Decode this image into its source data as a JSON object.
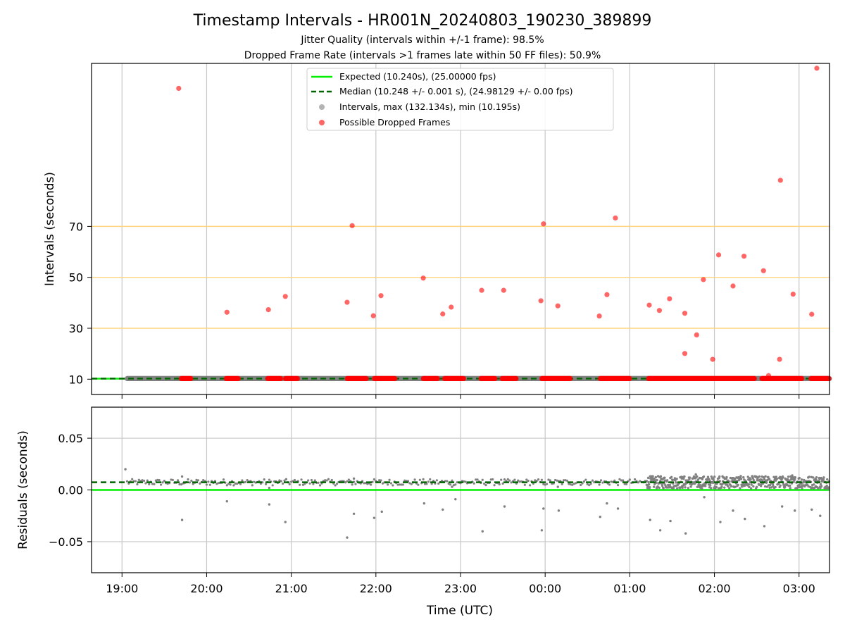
{
  "chart_data": {
    "type": "scatter",
    "title": "Timestamp Intervals - HR001N_20240803_190230_389899",
    "subtitle_lines": [
      "Jitter Quality (intervals within +/-1 frame): 98.5%",
      "Dropped Frame Rate (intervals >1 frames late within 50 FF files): 50.9%"
    ],
    "xlabel": "Time (UTC)",
    "x_tick_labels": [
      "19:00",
      "20:00",
      "21:00",
      "22:00",
      "23:00",
      "00:00",
      "01:00",
      "02:00",
      "03:00"
    ],
    "x_range_hours": [
      18.64,
      27.36
    ],
    "grid": true,
    "legend_position": "top-center",
    "colors": {
      "expected": "#00ee00",
      "median": "#006400",
      "intervals": "#808080",
      "dropped": "#ff0000",
      "threshold_lines": "#ffd580",
      "grid": "#c8c8c8"
    },
    "top_panel": {
      "ylabel": "Intervals (seconds)",
      "ylim": [
        4,
        134
      ],
      "y_ticks": [
        10,
        30,
        50,
        70
      ],
      "threshold_lines": [
        30,
        50,
        70
      ],
      "series": [
        {
          "name": "Expected (10.240s), (25.00000 fps)",
          "style": "line",
          "y": 10.24
        },
        {
          "name": "Median (10.248 +/- 0.001 s), (24.98129 +/- 0.00 fps)",
          "style": "dashed",
          "y": 10.248
        },
        {
          "name": "Intervals, max (132.134s), min (10.195s)",
          "style": "points",
          "x_extent": [
            19.06,
            27.36
          ],
          "y": 10.25
        },
        {
          "name": "Possible Dropped Frames",
          "style": "points",
          "clusters": [
            {
              "x_from": 19.7,
              "x_to": 19.82,
              "y": 10.25
            },
            {
              "x_from": 20.23,
              "x_to": 20.38,
              "y": 10.25
            },
            {
              "x_from": 20.72,
              "x_to": 20.88,
              "y": 10.25
            },
            {
              "x_from": 20.93,
              "x_to": 21.08,
              "y": 10.25
            },
            {
              "x_from": 21.66,
              "x_to": 21.89,
              "y": 10.25
            },
            {
              "x_from": 21.98,
              "x_to": 22.23,
              "y": 10.25
            },
            {
              "x_from": 22.56,
              "x_to": 22.73,
              "y": 10.25
            },
            {
              "x_from": 22.81,
              "x_to": 23.04,
              "y": 10.25
            },
            {
              "x_from": 23.24,
              "x_to": 23.41,
              "y": 10.25
            },
            {
              "x_from": 23.49,
              "x_to": 23.66,
              "y": 10.25
            },
            {
              "x_from": 23.96,
              "x_to": 24.3,
              "y": 10.25
            },
            {
              "x_from": 24.65,
              "x_to": 25.0,
              "y": 10.25
            },
            {
              "x_from": 25.22,
              "x_to": 26.48,
              "y": 10.25
            },
            {
              "x_from": 26.56,
              "x_to": 27.04,
              "y": 10.25
            },
            {
              "x_from": 27.14,
              "x_to": 27.36,
              "y": 10.25
            }
          ],
          "points": [
            {
              "x": 19.67,
              "y": 124.2
            },
            {
              "x": 20.24,
              "y": 36.3
            },
            {
              "x": 20.73,
              "y": 37.3
            },
            {
              "x": 20.93,
              "y": 42.5
            },
            {
              "x": 21.66,
              "y": 40.2
            },
            {
              "x": 21.72,
              "y": 70.3
            },
            {
              "x": 21.97,
              "y": 34.9
            },
            {
              "x": 22.06,
              "y": 42.8
            },
            {
              "x": 22.56,
              "y": 49.7
            },
            {
              "x": 22.79,
              "y": 35.6
            },
            {
              "x": 22.89,
              "y": 38.3
            },
            {
              "x": 23.25,
              "y": 44.9
            },
            {
              "x": 23.51,
              "y": 44.9
            },
            {
              "x": 23.95,
              "y": 40.8
            },
            {
              "x": 23.98,
              "y": 71.0
            },
            {
              "x": 24.15,
              "y": 38.8
            },
            {
              "x": 24.64,
              "y": 34.8
            },
            {
              "x": 24.73,
              "y": 43.2
            },
            {
              "x": 24.83,
              "y": 73.3
            },
            {
              "x": 25.23,
              "y": 39.1
            },
            {
              "x": 25.35,
              "y": 37.0
            },
            {
              "x": 25.47,
              "y": 41.6
            },
            {
              "x": 25.65,
              "y": 35.9
            },
            {
              "x": 25.65,
              "y": 20.1
            },
            {
              "x": 25.79,
              "y": 27.4
            },
            {
              "x": 25.87,
              "y": 49.1
            },
            {
              "x": 25.98,
              "y": 17.8
            },
            {
              "x": 26.05,
              "y": 58.8
            },
            {
              "x": 26.22,
              "y": 46.6
            },
            {
              "x": 26.35,
              "y": 58.3
            },
            {
              "x": 26.58,
              "y": 52.6
            },
            {
              "x": 26.64,
              "y": 11.4
            },
            {
              "x": 26.77,
              "y": 17.8
            },
            {
              "x": 26.78,
              "y": 88.1
            },
            {
              "x": 26.93,
              "y": 43.4
            },
            {
              "x": 27.15,
              "y": 35.5
            },
            {
              "x": 27.21,
              "y": 132.1
            }
          ]
        }
      ]
    },
    "bottom_panel": {
      "ylabel": "Residuals (seconds)",
      "ylim": [
        -0.08,
        0.08
      ],
      "y_ticks": [
        -0.05,
        0.0,
        0.05
      ],
      "y_tick_labels": [
        "−0.05",
        "0.00",
        "0.05"
      ],
      "expected_residual": 0.0,
      "median_residual": 0.0074,
      "points": [
        {
          "x": 19.04,
          "y": 0.02
        },
        {
          "x": 19.71,
          "y": 0.013
        },
        {
          "x": 19.71,
          "y": -0.029
        },
        {
          "x": 20.24,
          "y": -0.011
        },
        {
          "x": 20.74,
          "y": 0.002
        },
        {
          "x": 20.74,
          "y": -0.014
        },
        {
          "x": 20.93,
          "y": -0.031
        },
        {
          "x": 21.66,
          "y": -0.046
        },
        {
          "x": 21.74,
          "y": -0.023
        },
        {
          "x": 21.74,
          "y": 0.011
        },
        {
          "x": 21.98,
          "y": -0.027
        },
        {
          "x": 22.07,
          "y": -0.021
        },
        {
          "x": 22.57,
          "y": -0.013
        },
        {
          "x": 22.79,
          "y": -0.019
        },
        {
          "x": 22.94,
          "y": -0.009
        },
        {
          "x": 22.9,
          "y": 0.003
        },
        {
          "x": 23.26,
          "y": -0.04
        },
        {
          "x": 23.52,
          "y": -0.016
        },
        {
          "x": 23.96,
          "y": -0.039
        },
        {
          "x": 23.98,
          "y": -0.018
        },
        {
          "x": 24.16,
          "y": -0.02
        },
        {
          "x": 24.15,
          "y": 0.003
        },
        {
          "x": 24.65,
          "y": -0.026
        },
        {
          "x": 24.73,
          "y": -0.013
        },
        {
          "x": 24.86,
          "y": -0.018
        },
        {
          "x": 25.24,
          "y": -0.029
        },
        {
          "x": 25.36,
          "y": -0.039
        },
        {
          "x": 25.48,
          "y": -0.03
        },
        {
          "x": 25.66,
          "y": -0.042
        },
        {
          "x": 25.88,
          "y": -0.007
        },
        {
          "x": 26.07,
          "y": -0.031
        },
        {
          "x": 26.22,
          "y": -0.02
        },
        {
          "x": 26.36,
          "y": -0.028
        },
        {
          "x": 26.59,
          "y": -0.035
        },
        {
          "x": 26.8,
          "y": -0.016
        },
        {
          "x": 26.95,
          "y": -0.02
        },
        {
          "x": 27.15,
          "y": -0.019
        },
        {
          "x": 27.25,
          "y": -0.025
        },
        {
          "x": 25.78,
          "y": 0.015
        },
        {
          "x": 26.92,
          "y": 0.014
        },
        {
          "x": 26.06,
          "y": 0.013
        }
      ],
      "dense_band": {
        "x_from": 25.2,
        "x_to": 27.36,
        "y_center": 0.0074,
        "y_spread": 0.006
      },
      "sparse_band": {
        "x_from": 19.06,
        "x_to": 25.2,
        "y_center": 0.0074,
        "y_spread": 0.003
      }
    }
  }
}
